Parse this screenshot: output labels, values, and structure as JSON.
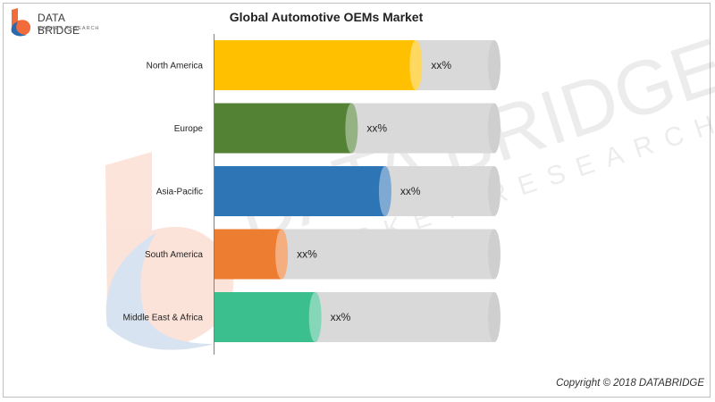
{
  "brand": {
    "name": "DATA BRIDGE",
    "tagline": "MARKET RESEARCH",
    "watermark_main": "DATA BRIDGE",
    "watermark_sub": "MARKET RESEARCH",
    "colors": {
      "orange": "#f26b3a",
      "blue": "#2a6ab0"
    }
  },
  "copyright": "Copyright © 2018 DATABRIDGE",
  "chart_data": {
    "type": "bar",
    "orientation": "horizontal",
    "title": "Global Automotive OEMs Market",
    "categories": [
      "North America",
      "Europe",
      "Asia-Pacific",
      "South America",
      "Middle East & Africa"
    ],
    "values": [
      72,
      49,
      61,
      24,
      36
    ],
    "data_labels": [
      "xx%",
      "xx%",
      "xx%",
      "xx%",
      "xx%"
    ],
    "xlim": [
      0,
      100
    ],
    "colors": [
      "#ffc000",
      "#548235",
      "#2e75b6",
      "#ed7d31",
      "#3cbf8f"
    ],
    "track_color": "#d9d9d9",
    "grid": false,
    "legend": "none"
  }
}
